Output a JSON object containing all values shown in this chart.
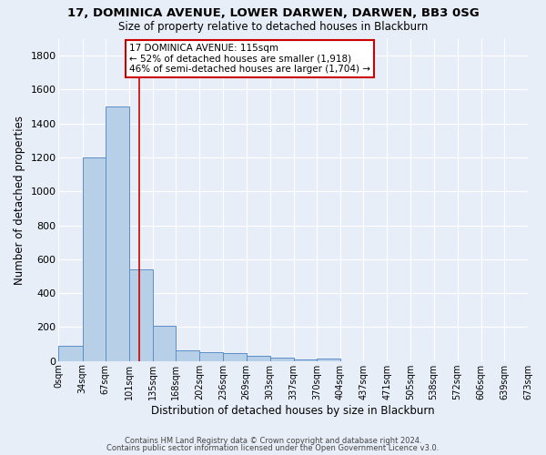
{
  "title1": "17, DOMINICA AVENUE, LOWER DARWEN, DARWEN, BB3 0SG",
  "title2": "Size of property relative to detached houses in Blackburn",
  "xlabel": "Distribution of detached houses by size in Blackburn",
  "ylabel": "Number of detached properties",
  "bar_values": [
    90,
    1200,
    1500,
    540,
    205,
    65,
    50,
    45,
    30,
    20,
    8,
    12,
    0,
    0,
    0,
    0,
    0,
    0,
    0,
    0
  ],
  "bar_color": "#b8cfe8",
  "bar_edge_color": "#5b8fc9",
  "bg_color": "#e8eef8",
  "grid_color": "#ffffff",
  "property_line_x": 115,
  "annotation_text": "17 DOMINICA AVENUE: 115sqm\n← 52% of detached houses are smaller (1,918)\n46% of semi-detached houses are larger (1,704) →",
  "annotation_box_color": "#ffffff",
  "annotation_border_color": "#cc0000",
  "footnote1": "Contains HM Land Registry data © Crown copyright and database right 2024.",
  "footnote2": "Contains public sector information licensed under the Open Government Licence v3.0.",
  "ylim_max": 1900,
  "yticks": [
    0,
    200,
    400,
    600,
    800,
    1000,
    1200,
    1400,
    1600,
    1800
  ],
  "bin_edges": [
    0,
    34,
    67,
    101,
    135,
    168,
    202,
    236,
    269,
    303,
    337,
    370,
    404,
    437,
    471,
    505,
    538,
    572,
    606,
    639,
    673
  ],
  "xlabels": [
    "0sqm",
    "34sqm",
    "67sqm",
    "101sqm",
    "135sqm",
    "168sqm",
    "202sqm",
    "236sqm",
    "269sqm",
    "303sqm",
    "337sqm",
    "370sqm",
    "404sqm",
    "437sqm",
    "471sqm",
    "505sqm",
    "538sqm",
    "572sqm",
    "606sqm",
    "639sqm",
    "673sqm"
  ]
}
